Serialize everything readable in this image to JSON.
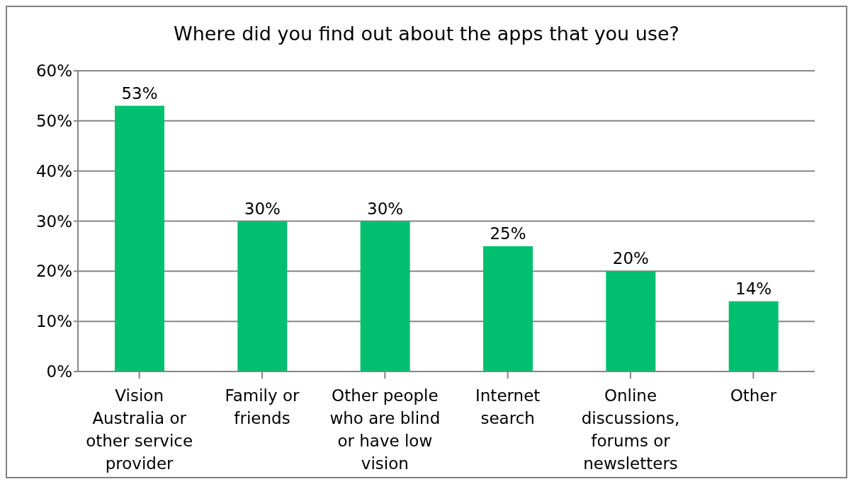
{
  "chart_data": {
    "type": "bar",
    "title": "Where did you find out about the apps that you use?",
    "categories": [
      "Vision Australia or other service provider",
      "Family or friends",
      "Other people who are blind or have low vision",
      "Internet search",
      "Online discussions, forums or newsletters",
      "Other"
    ],
    "values": [
      53,
      30,
      30,
      25,
      20,
      14
    ],
    "color": "#00bf6f",
    "value_labels": [
      "53%",
      "30%",
      "30%",
      "25%",
      "20%",
      "14%"
    ],
    "ylim": [
      0,
      60
    ],
    "yticks": [
      {
        "value": 0,
        "label": "0%"
      },
      {
        "value": 10,
        "label": "10%"
      },
      {
        "value": 20,
        "label": "20%"
      },
      {
        "value": 30,
        "label": "30%"
      },
      {
        "value": 40,
        "label": "40%"
      },
      {
        "value": 50,
        "label": "50%"
      },
      {
        "value": 60,
        "label": "60%"
      }
    ],
    "grid": "y"
  }
}
